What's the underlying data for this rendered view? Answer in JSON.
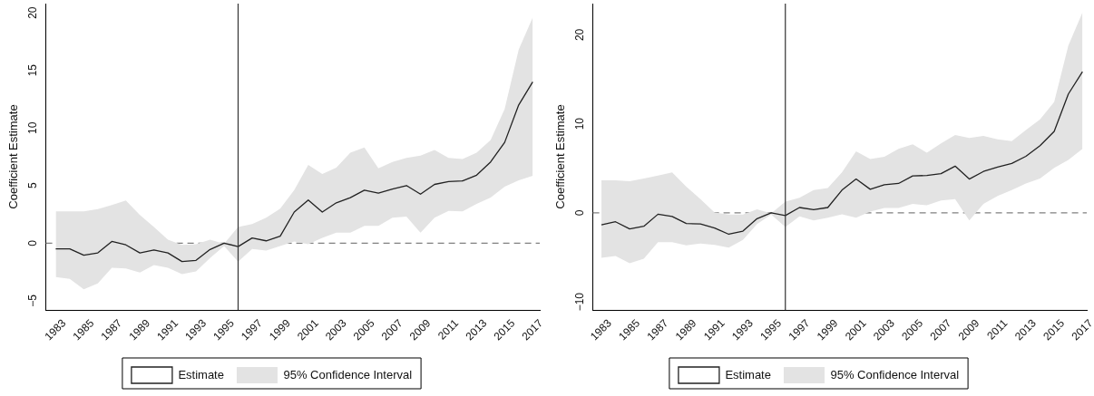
{
  "chart_data": [
    {
      "type": "line",
      "ylabel": "Coefficient Estimate",
      "legend": "bottom",
      "grid": false,
      "line_style": "solid",
      "x": [
        1983,
        1984,
        1985,
        1986,
        1987,
        1988,
        1989,
        1990,
        1991,
        1992,
        1993,
        1994,
        1995,
        1996,
        1997,
        1998,
        1999,
        2000,
        2001,
        2002,
        2003,
        2004,
        2005,
        2006,
        2007,
        2008,
        2009,
        2010,
        2011,
        2012,
        2013,
        2014,
        2015,
        2016,
        2017
      ],
      "xlim": [
        1982.3,
        2017.5
      ],
      "xticks": [
        1983,
        1985,
        1987,
        1989,
        1991,
        1993,
        1995,
        1997,
        1999,
        2001,
        2003,
        2005,
        2007,
        2009,
        2011,
        2013,
        2015,
        2017
      ],
      "ylim": [
        -5.8,
        20.8
      ],
      "yticks": [
        -5,
        0,
        5,
        10,
        15,
        20
      ],
      "annotations": [
        "95% Confidence Interval"
      ],
      "ref_lines": [
        {
          "axis": "y",
          "value": 0,
          "color": "#808080",
          "line_style": "dashed"
        },
        {
          "axis": "x",
          "value": 1996,
          "color": "#333333",
          "line_style": "solid"
        }
      ],
      "series": [
        {
          "name": "Estimate",
          "color": "#222222",
          "values": [
            -0.5,
            -0.5,
            -1.05,
            -0.85,
            0.15,
            -0.15,
            -0.85,
            -0.6,
            -0.85,
            -1.6,
            -1.5,
            -0.55,
            0,
            -0.3,
            0.45,
            0.2,
            0.6,
            2.7,
            3.75,
            2.7,
            3.5,
            3.95,
            4.6,
            4.35,
            4.7,
            5,
            4.25,
            5.1,
            5.35,
            5.4,
            5.9,
            7.05,
            8.75,
            12,
            14
          ],
          "lower": [
            -2.95,
            -3.1,
            -4,
            -3.5,
            -2.15,
            -2.2,
            -2.55,
            -1.9,
            -2.15,
            -2.7,
            -2.45,
            -1.3,
            -0.25,
            -1.6,
            -0.5,
            -0.65,
            -0.25,
            0.15,
            -0.1,
            0.45,
            0.9,
            0.9,
            1.5,
            1.5,
            2.2,
            2.3,
            0.9,
            2.2,
            2.8,
            2.75,
            3.4,
            3.95,
            4.9,
            5.45,
            5.85
          ],
          "upper": [
            2.75,
            2.75,
            2.75,
            2.95,
            3.3,
            3.7,
            2.45,
            1.4,
            0.3,
            -0.15,
            -0.1,
            0.3,
            -0.05,
            1.4,
            1.65,
            2.2,
            3,
            4.6,
            6.8,
            6,
            6.55,
            7.85,
            8.3,
            6.5,
            7.05,
            7.4,
            7.6,
            8.1,
            7.4,
            7.3,
            7.85,
            8.95,
            11.65,
            16.8,
            19.6
          ]
        }
      ]
    },
    {
      "type": "line",
      "ylabel": "Coefficient Estimate",
      "legend": "bottom",
      "grid": false,
      "line_style": "solid",
      "x": [
        1983,
        1984,
        1985,
        1986,
        1987,
        1988,
        1989,
        1990,
        1991,
        1992,
        1993,
        1994,
        1995,
        1996,
        1997,
        1998,
        1999,
        2000,
        2001,
        2002,
        2003,
        2004,
        2005,
        2006,
        2007,
        2008,
        2009,
        2010,
        2011,
        2012,
        2013,
        2014,
        2015,
        2016,
        2017
      ],
      "xlim": [
        1982.4,
        2017.3
      ],
      "xticks": [
        1983,
        1985,
        1987,
        1989,
        1991,
        1993,
        1995,
        1997,
        1999,
        2001,
        2003,
        2005,
        2007,
        2009,
        2011,
        2013,
        2015,
        2017
      ],
      "ylim": [
        -10.9,
        23.5
      ],
      "yticks": [
        -10,
        0,
        10,
        20
      ],
      "annotations": [
        "95% Confidence Interval"
      ],
      "ref_lines": [
        {
          "axis": "y",
          "value": 0,
          "color": "#808080",
          "line_style": "dashed"
        },
        {
          "axis": "x",
          "value": 1996,
          "color": "#333333",
          "line_style": "solid"
        }
      ],
      "series": [
        {
          "name": "Estimate",
          "color": "#222222",
          "values": [
            -1.35,
            -1,
            -1.8,
            -1.5,
            -0.15,
            -0.4,
            -1.2,
            -1.25,
            -1.7,
            -2.4,
            -2.05,
            -0.65,
            0,
            -0.3,
            0.6,
            0.35,
            0.6,
            2.55,
            3.8,
            2.65,
            3.15,
            3.3,
            4.15,
            4.2,
            4.4,
            5.25,
            3.8,
            4.65,
            5.15,
            5.55,
            6.35,
            7.55,
            9.15,
            13.35,
            15.85
          ],
          "lower": [
            -5.05,
            -4.85,
            -5.65,
            -5.15,
            -3.3,
            -3.3,
            -3.65,
            -3.45,
            -3.6,
            -3.9,
            -3.05,
            -1.25,
            -0.2,
            -1.6,
            -0.4,
            -0.85,
            -0.55,
            -0.15,
            -0.55,
            0.15,
            0.55,
            0.55,
            1,
            0.85,
            1.4,
            1.55,
            -0.85,
            1,
            1.9,
            2.55,
            3.3,
            3.85,
            5.05,
            5.95,
            7.2
          ],
          "upper": [
            3.65,
            3.65,
            3.55,
            3.85,
            4.2,
            4.55,
            2.95,
            1.55,
            0.05,
            -0.2,
            -0.2,
            0.4,
            -0.05,
            1.25,
            1.7,
            2.55,
            2.8,
            4.55,
            6.9,
            6.05,
            6.3,
            7.2,
            7.7,
            6.75,
            7.8,
            8.75,
            8.4,
            8.65,
            8.25,
            8.05,
            9.3,
            10.5,
            12.45,
            18.8,
            22.5
          ]
        }
      ]
    }
  ]
}
